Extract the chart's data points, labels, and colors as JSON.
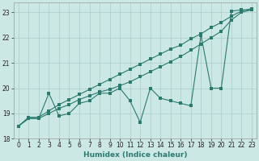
{
  "xlabel": "Humidex (Indice chaleur)",
  "x": [
    0,
    1,
    2,
    3,
    4,
    5,
    6,
    7,
    8,
    9,
    10,
    11,
    12,
    13,
    14,
    15,
    16,
    17,
    18,
    19,
    20,
    21,
    22,
    23
  ],
  "zigzag": [
    18.5,
    18.8,
    18.8,
    19.8,
    18.9,
    19.0,
    19.4,
    19.5,
    19.8,
    19.8,
    20.0,
    19.5,
    18.65,
    20.0,
    19.6,
    19.5,
    19.4,
    19.3,
    22.1,
    20.0,
    20.0,
    23.05,
    23.1,
    23.1
  ],
  "upper": [
    18.5,
    18.85,
    18.85,
    19.1,
    19.35,
    19.55,
    19.75,
    19.95,
    20.15,
    20.35,
    20.55,
    20.75,
    20.95,
    21.15,
    21.35,
    21.55,
    21.7,
    21.95,
    22.15,
    22.4,
    22.6,
    22.85,
    23.05,
    23.15
  ],
  "lower": [
    18.5,
    18.8,
    18.8,
    19.0,
    19.2,
    19.35,
    19.55,
    19.7,
    19.85,
    19.95,
    20.1,
    20.25,
    20.45,
    20.65,
    20.85,
    21.05,
    21.25,
    21.5,
    21.75,
    22.0,
    22.25,
    22.7,
    23.0,
    23.1
  ],
  "line_color": "#2a7a6e",
  "bg_color": "#cce8e4",
  "grid_color": "#aaccca",
  "ylim": [
    18.0,
    23.4
  ],
  "xlim": [
    -0.5,
    23.5
  ],
  "yticks": [
    18,
    19,
    20,
    21,
    22,
    23
  ],
  "xticks": [
    0,
    1,
    2,
    3,
    4,
    5,
    6,
    7,
    8,
    9,
    10,
    11,
    12,
    13,
    14,
    15,
    16,
    17,
    18,
    19,
    20,
    21,
    22,
    23
  ]
}
